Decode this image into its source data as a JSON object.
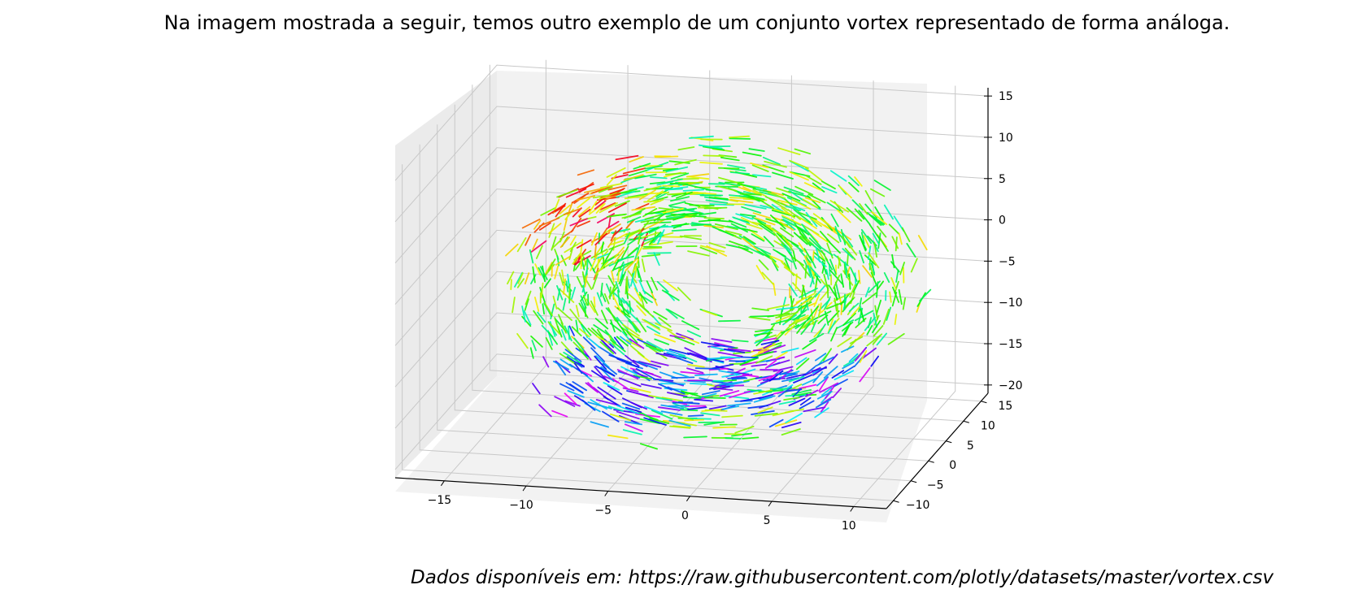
{
  "heading": "Na imagem mostrada a seguir, temos outro exemplo de um conjunto vortex representado de forma análoga.",
  "source_note": "Dados disponíveis em: https://raw.githubusercontent.com/plotly/datasets/master/vortex.csv",
  "chart_data": {
    "type": "scatter",
    "subtype": "3d-quiver (cone/arrow field)",
    "title": "",
    "xlabel": "",
    "ylabel": "",
    "zlabel": "",
    "x_ticks": [
      -15,
      -10,
      -5,
      0,
      5,
      10
    ],
    "y_ticks": [
      -10,
      -5,
      0,
      5,
      10,
      15
    ],
    "z_ticks": [
      -20,
      -15,
      -10,
      -5,
      0,
      5,
      10,
      15
    ],
    "xlim": [
      -18,
      12
    ],
    "ylim": [
      -12,
      17
    ],
    "zlim": [
      -21,
      16
    ],
    "grid": true,
    "colormap": "hsv (red → yellow → green → cyan → blue → purple)",
    "pane_color": "#f2f2f2",
    "grid_color": "#c8c8c8",
    "vortex": {
      "center_x": -1,
      "center_y": 0,
      "center_z": -1,
      "radius_inner": 5,
      "radius_outer": 12,
      "z_range": [
        -20,
        15
      ],
      "vector_count": 1400
    }
  }
}
